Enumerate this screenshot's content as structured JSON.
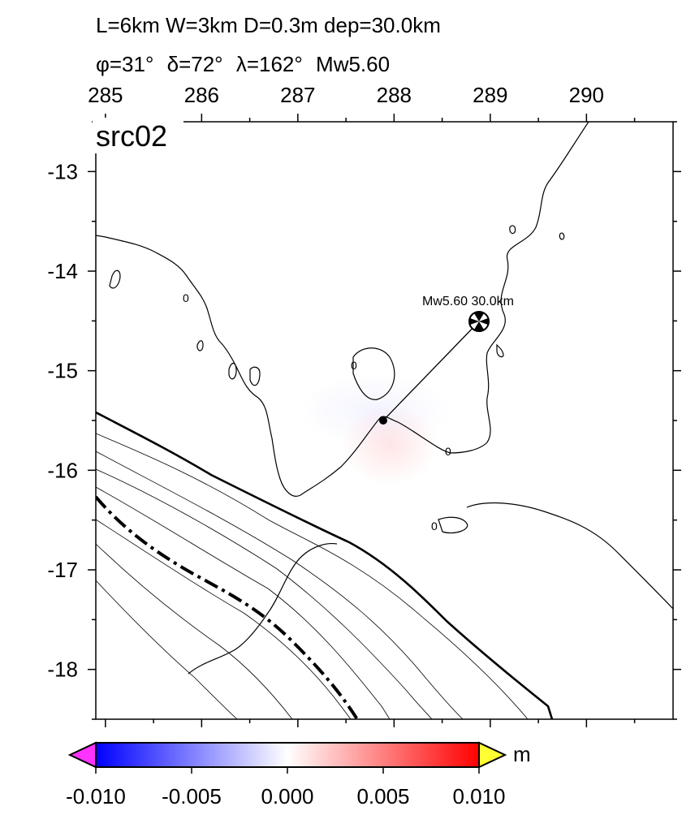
{
  "header": {
    "line1": "L=6km W=3km D=0.3m dep=30.0km",
    "strike": "φ=31°",
    "dip": "δ=72°",
    "rake": "λ=162°",
    "magnitude": "Mw5.60"
  },
  "map": {
    "panel_label": "src02",
    "lon_range": [
      284.9,
      290.9
    ],
    "lat_range": [
      -18.5,
      -12.5
    ],
    "lon_ticks": [
      "285",
      "286",
      "287",
      "288",
      "289",
      "290"
    ],
    "lat_ticks": [
      "-13",
      "-14",
      "-15",
      "-16",
      "-17",
      "-18"
    ],
    "coastline_color": "#000000",
    "source": {
      "lon": 288.9,
      "lat": -14.5,
      "label": "Mw5.60  30.0km",
      "icon": "beachball-focal-mechanism-icon"
    },
    "fault_center": {
      "lon": 287.9,
      "lat": -15.5
    },
    "contour_labels": [
      "0",
      "0",
      "0",
      "0"
    ]
  },
  "colorbar": {
    "unit": "m",
    "min": -0.01,
    "max": 0.01,
    "colors": [
      "#0000ff",
      "#ffffff",
      "#ff0000"
    ],
    "underflow_color": "#ff33ff",
    "overflow_color": "#ffff33",
    "tick_labels": [
      "-0.010",
      "-0.005",
      "0.000",
      "0.005",
      "0.010"
    ]
  }
}
